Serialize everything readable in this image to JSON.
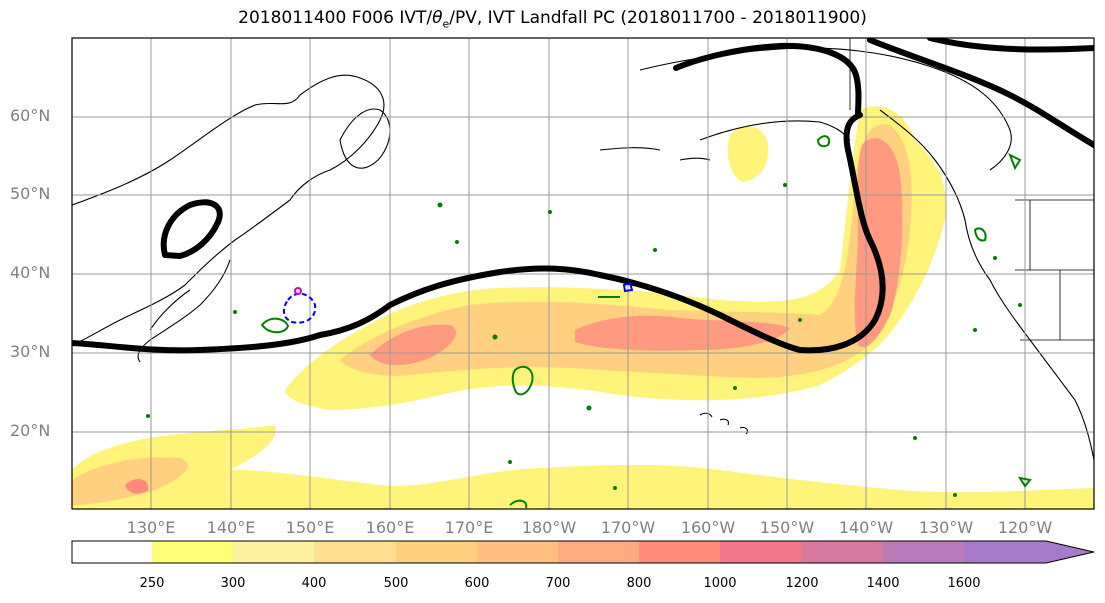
{
  "title": {
    "prefix": "2018011400 F006 IVT/",
    "theta": "θ",
    "theta_sub": "e",
    "suffix": "/PV, IVT Landfall PC (2018011700 - 2018011900)"
  },
  "lat_labels": [
    "60°N",
    "50°N",
    "40°N",
    "30°N",
    "20°N"
  ],
  "lon_labels": [
    "130°E",
    "140°E",
    "150°E",
    "160°E",
    "170°E",
    "180°W",
    "170°W",
    "160°W",
    "150°W",
    "140°W",
    "130°W",
    "120°W"
  ],
  "colorbar": {
    "ticks": [
      "250",
      "300",
      "400",
      "500",
      "600",
      "700",
      "800",
      "1000",
      "1200",
      "1400",
      "1600"
    ],
    "colors": [
      "#ffffff",
      "#ffff7a",
      "#fff0a0",
      "#ffe090",
      "#ffd080",
      "#ffbf80",
      "#ffaa80",
      "#ff8c7a",
      "#f07888",
      "#d87aa0",
      "#b87ab8",
      "#a67ac8"
    ]
  },
  "contours": {
    "ivt_fill_color": "#ffe080",
    "theta_e_color": "#000000",
    "pv_color": "#008000",
    "pv_secondary_color": "#0000ff",
    "marker_color": "#cc00cc"
  }
}
